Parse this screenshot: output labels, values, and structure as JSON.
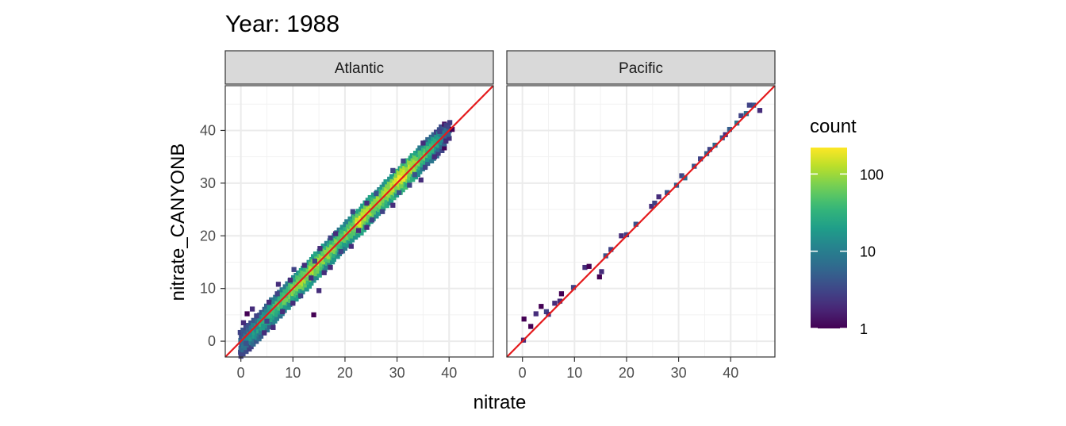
{
  "chart_data": {
    "type": "heatmap",
    "title": "Year: 1988",
    "xlabel": "nitrate",
    "ylabel": "nitrate_CANYONB",
    "xlim": [
      -3,
      48.5
    ],
    "ylim": [
      -3,
      48.5
    ],
    "x_ticks": [
      0,
      10,
      20,
      30,
      40
    ],
    "y_ticks": [
      0,
      10,
      20,
      30,
      40
    ],
    "grid": true,
    "reference_line": {
      "slope": 1,
      "intercept": 0,
      "color": "#e41a1c"
    },
    "legend": {
      "title": "count",
      "scale": "log10",
      "range": [
        1,
        220
      ],
      "ticks": [
        1,
        10,
        100
      ],
      "placement": "right"
    },
    "panels": [
      {
        "label": "Atlantic",
        "core": [
          [
            0.0,
            -0.6,
            7,
            1.6
          ],
          [
            2.0,
            1.2,
            14,
            1.5
          ],
          [
            4.0,
            3.2,
            24,
            1.4
          ],
          [
            6.0,
            5.6,
            35,
            1.3
          ],
          [
            8.0,
            7.5,
            55,
            1.2
          ],
          [
            10.0,
            9.8,
            80,
            1.2
          ],
          [
            12.0,
            11.6,
            110,
            1.2
          ],
          [
            14.0,
            13.8,
            120,
            1.2
          ],
          [
            16.0,
            15.8,
            100,
            1.2
          ],
          [
            18.0,
            17.8,
            75,
            1.2
          ],
          [
            20.0,
            19.9,
            65,
            1.2
          ],
          [
            22.0,
            22.0,
            90,
            1.2
          ],
          [
            23.0,
            22.8,
            200,
            1.1
          ],
          [
            24.0,
            24.0,
            120,
            1.2
          ],
          [
            26.0,
            26.0,
            95,
            1.2
          ],
          [
            28.0,
            28.0,
            120,
            1.2
          ],
          [
            30.0,
            30.0,
            150,
            1.2
          ],
          [
            31.0,
            31.0,
            220,
            1.2
          ],
          [
            32.0,
            32.0,
            160,
            1.2
          ],
          [
            34.0,
            33.9,
            85,
            1.2
          ],
          [
            36.0,
            36.0,
            45,
            1.2
          ],
          [
            38.0,
            37.9,
            22,
            1.2
          ],
          [
            40.0,
            40.0,
            6,
            1.0
          ]
        ],
        "outliers": [
          [
            0.5,
            3.5,
            2
          ],
          [
            1.2,
            5.2,
            1
          ],
          [
            2.2,
            6.1,
            2
          ],
          [
            3.0,
            4.8,
            3
          ],
          [
            1.0,
            -0.4,
            4
          ],
          [
            4.5,
            1.6,
            2
          ],
          [
            5.0,
            3.8,
            3
          ],
          [
            6.2,
            2.6,
            2
          ],
          [
            5.4,
            7.4,
            2
          ],
          [
            7.0,
            9.0,
            3
          ],
          [
            7.2,
            10.8,
            2
          ],
          [
            8.0,
            5.6,
            2
          ],
          [
            9.5,
            11.6,
            2
          ],
          [
            10.2,
            13.6,
            3
          ],
          [
            10.0,
            7.2,
            2
          ],
          [
            11.5,
            8.6,
            3
          ],
          [
            12.2,
            14.4,
            2
          ],
          [
            13.5,
            12.0,
            2
          ],
          [
            14.2,
            15.2,
            3
          ],
          [
            15.0,
            9.6,
            2
          ],
          [
            14.0,
            5.0,
            1
          ],
          [
            15.2,
            17.6,
            2
          ],
          [
            16.0,
            13.0,
            2
          ],
          [
            17.2,
            19.6,
            3
          ],
          [
            18.2,
            20.4,
            2
          ],
          [
            17.2,
            14.0,
            2
          ],
          [
            19.2,
            17.0,
            3
          ],
          [
            21.2,
            18.0,
            2
          ],
          [
            21.5,
            24.6,
            3
          ],
          [
            22.6,
            21.0,
            2
          ],
          [
            24.2,
            26.2,
            2
          ],
          [
            24.2,
            21.6,
            2
          ],
          [
            25.2,
            23.0,
            3
          ],
          [
            26.0,
            28.0,
            4
          ],
          [
            27.2,
            24.6,
            3
          ],
          [
            29.2,
            25.8,
            2
          ],
          [
            29.2,
            32.4,
            3
          ],
          [
            30.4,
            28.2,
            4
          ],
          [
            31.2,
            34.2,
            3
          ],
          [
            32.4,
            29.6,
            3
          ],
          [
            33.4,
            31.6,
            4
          ],
          [
            34.6,
            30.6,
            2
          ],
          [
            35.4,
            33.0,
            3
          ],
          [
            37.2,
            35.0,
            2
          ],
          [
            38.2,
            39.8,
            3
          ],
          [
            39.4,
            38.0,
            2
          ],
          [
            40.6,
            40.2,
            1
          ],
          [
            35.0,
            37.6,
            2
          ]
        ]
      },
      {
        "label": "Pacific",
        "points": [
          [
            0.2,
            0.2,
            2
          ],
          [
            0.3,
            4.2,
            1
          ],
          [
            1.6,
            2.8,
            1
          ],
          [
            2.6,
            5.2,
            2
          ],
          [
            3.6,
            6.6,
            1
          ],
          [
            4.6,
            5.6,
            3
          ],
          [
            5.0,
            5.1,
            2
          ],
          [
            6.2,
            7.2,
            2
          ],
          [
            7.5,
            9.0,
            1
          ],
          [
            7.2,
            7.6,
            2
          ],
          [
            9.8,
            10.2,
            3
          ],
          [
            12.0,
            14.0,
            2
          ],
          [
            12.8,
            14.2,
            1
          ],
          [
            14.8,
            12.2,
            1
          ],
          [
            15.2,
            13.2,
            2
          ],
          [
            16.0,
            16.2,
            4
          ],
          [
            17.0,
            17.4,
            3
          ],
          [
            19.0,
            20.0,
            2
          ],
          [
            20.0,
            20.2,
            3
          ],
          [
            21.8,
            22.2,
            4
          ],
          [
            24.8,
            25.6,
            2
          ],
          [
            25.4,
            26.2,
            3
          ],
          [
            26.2,
            27.4,
            2
          ],
          [
            27.8,
            28.2,
            4
          ],
          [
            29.6,
            29.6,
            5
          ],
          [
            30.6,
            31.4,
            3
          ],
          [
            31.2,
            31.0,
            6
          ],
          [
            33.0,
            33.2,
            4
          ],
          [
            34.2,
            34.6,
            3
          ],
          [
            35.4,
            35.6,
            5
          ],
          [
            37.0,
            37.2,
            6
          ],
          [
            38.4,
            38.6,
            4
          ],
          [
            39.8,
            40.2,
            5
          ],
          [
            41.2,
            41.4,
            8
          ],
          [
            42.0,
            42.8,
            3
          ],
          [
            43.0,
            43.2,
            7
          ],
          [
            44.4,
            44.8,
            4
          ],
          [
            45.6,
            43.8,
            2
          ],
          [
            43.6,
            44.8,
            3
          ],
          [
            39.0,
            39.2,
            2
          ],
          [
            36.0,
            36.4,
            3
          ]
        ]
      }
    ]
  }
}
